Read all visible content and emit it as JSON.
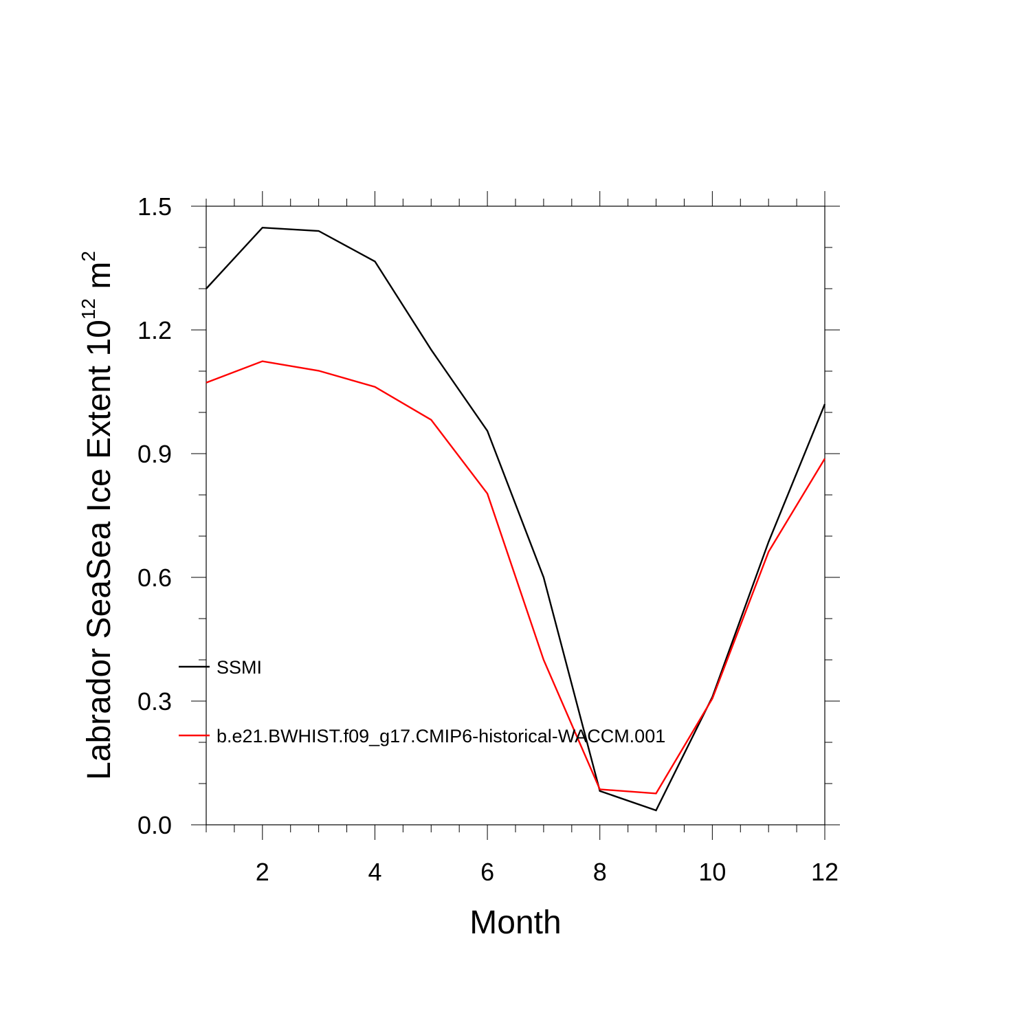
{
  "chart_data": {
    "type": "line",
    "xlabel": "Month",
    "ylabel": {
      "base": "Labrador SeaSea Ice Extent 10",
      "exponent": "12",
      "unit_base": " m",
      "unit_exponent": "2"
    },
    "xlim": [
      1,
      12
    ],
    "ylim": [
      0,
      1.5
    ],
    "xticks": [
      2,
      4,
      6,
      8,
      10,
      12
    ],
    "yticks": [
      0.0,
      0.3,
      0.6,
      0.9,
      1.2,
      1.5
    ],
    "ytick_labels": [
      "0.0",
      "0.3",
      "0.6",
      "0.9",
      "1.2",
      "1.5"
    ],
    "grid": false,
    "legend_position": "left-inside",
    "x": [
      1,
      2,
      3,
      4,
      5,
      6,
      7,
      8,
      9,
      10,
      11,
      12
    ],
    "series": [
      {
        "name": "SSMI",
        "color": "#000000",
        "values": [
          1.3,
          1.448,
          1.44,
          1.366,
          1.152,
          0.955,
          0.6,
          0.082,
          0.035,
          0.31,
          0.686,
          1.02
        ]
      },
      {
        "name": "b.e21.BWHIST.f09_g17.CMIP6-historical-WACCM.001",
        "color": "#ff0000",
        "values": [
          1.072,
          1.124,
          1.101,
          1.062,
          0.982,
          0.803,
          0.4,
          0.086,
          0.076,
          0.306,
          0.662,
          0.888
        ]
      }
    ]
  }
}
